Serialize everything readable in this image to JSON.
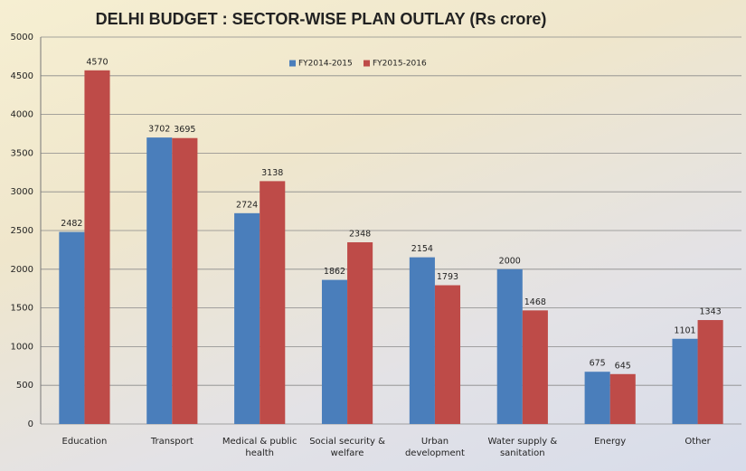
{
  "chart_data": {
    "type": "bar",
    "title": "DELHI BUDGET : SECTOR-WISE PLAN OUTLAY (Rs crore)",
    "categories": [
      "Education",
      "Transport",
      "Medical & public health",
      "Social security & welfare",
      "Urban development",
      "Water supply & sanitation",
      "Energy",
      "Other"
    ],
    "series": [
      {
        "name": "FY2014-2015",
        "color": "#4a7ebb",
        "values": [
          2482,
          3702,
          2724,
          1862,
          2154,
          2000,
          675,
          1101
        ]
      },
      {
        "name": "FY2015-2016",
        "color": "#be4b48",
        "values": [
          4570,
          3695,
          3138,
          2348,
          1793,
          1468,
          645,
          1343
        ]
      }
    ],
    "ylim": [
      0,
      5000
    ],
    "yticks": [
      0,
      500,
      1000,
      1500,
      2000,
      2500,
      3000,
      3500,
      4000,
      4500,
      5000
    ],
    "grid": true,
    "legend": "top"
  }
}
